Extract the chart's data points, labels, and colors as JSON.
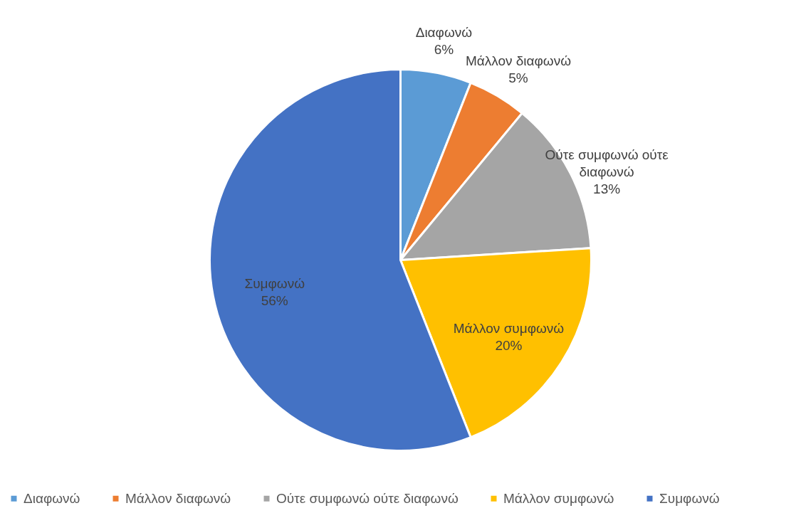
{
  "chart_data": {
    "type": "pie",
    "categories": [
      "Διαφωνώ",
      "Μάλλον διαφωνώ",
      "Ούτε συμφωνώ ούτε διαφωνώ",
      "Μάλλον συμφωνώ",
      "Συμφωνώ"
    ],
    "values": [
      6,
      5,
      13,
      20,
      56
    ],
    "colors": [
      "#5b9bd5",
      "#ed7d31",
      "#a5a5a5",
      "#ffc000",
      "#4472c4"
    ],
    "value_labels": [
      "6%",
      "5%",
      "13%",
      "20%",
      "56%"
    ],
    "legend": "bottom"
  }
}
